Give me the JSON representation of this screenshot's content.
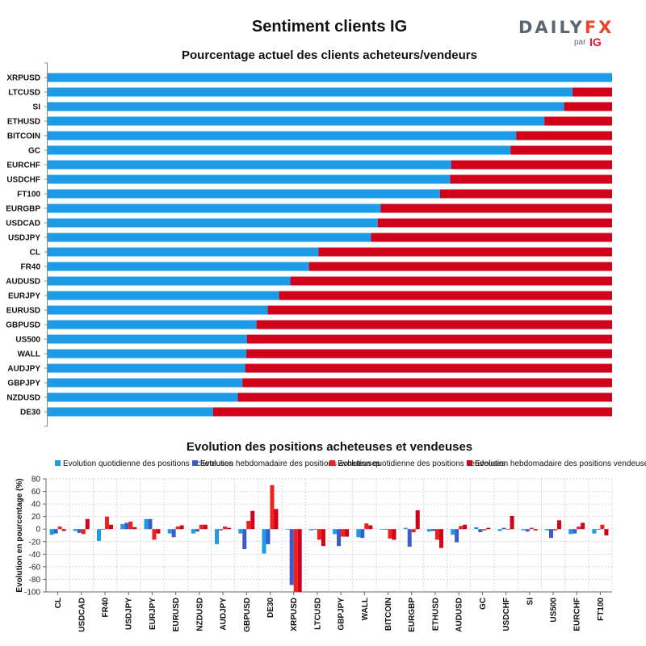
{
  "header": {
    "title": "Sentiment clients IG",
    "logo": {
      "word_main": "DAILY",
      "word_accent": "FX",
      "par": "par",
      "brand": "IG"
    }
  },
  "colors": {
    "buy": "#1e9be6",
    "sell": "#d0021b",
    "weekly_buy": "#3b5cc9",
    "weekly_sell": "#f0201d"
  },
  "chart_data": [
    {
      "type": "bar",
      "orientation": "horizontal",
      "stacked": true,
      "title": "Pourcentage actuel des clients acheteurs/vendeurs",
      "categories": [
        "XRPUSD",
        "LTCUSD",
        "SI",
        "ETHUSD",
        "BITCOIN",
        "GC",
        "EURCHF",
        "USDCHF",
        "FT100",
        "EURGBP",
        "USDCAD",
        "USDJPY",
        "CL",
        "FR40",
        "AUDUSD",
        "EURJPY",
        "EURUSD",
        "GBPUSD",
        "US500",
        "WALL",
        "AUDJPY",
        "GBPJPY",
        "NZDUSD",
        "DE30"
      ],
      "series": [
        {
          "values": [
            100,
            93,
            91.5,
            88,
            83,
            82,
            71.5,
            71.3,
            69.5,
            59,
            58.5,
            57.3,
            48,
            46.3,
            43,
            41,
            39,
            37,
            35.3,
            35.2,
            35,
            34.5,
            33.7,
            29.3
          ]
        },
        {
          "values": [
            0,
            7,
            8.5,
            12,
            17,
            18,
            28.5,
            28.7,
            30.5,
            41,
            41.5,
            42.7,
            52,
            53.7,
            57,
            59,
            61,
            63,
            64.7,
            64.8,
            65,
            65.5,
            66.3,
            70.7
          ]
        }
      ],
      "xlim": [
        0,
        100
      ]
    },
    {
      "type": "bar",
      "title": "Evolution des positions acheteuses et vendeuses",
      "ylabel": "Evolution en pourcentage (%)",
      "ylim": [
        -100,
        80
      ],
      "yticks": [
        80,
        60,
        40,
        20,
        0,
        -20,
        -40,
        -60,
        -80,
        -100
      ],
      "grid": true,
      "legend_position": "top",
      "categories": [
        "CL",
        "USDCAD",
        "FR40",
        "USDJPY",
        "EURJPY",
        "EURUSD",
        "NZDUSD",
        "AUDJPY",
        "GBPUSD",
        "DE30",
        "XRPUSD",
        "LTCUSD",
        "GBPJPY",
        "WALL",
        "BITCOIN",
        "EURGBP",
        "ETHUSD",
        "AUDUSD",
        "GC",
        "USDCHF",
        "SI",
        "US500",
        "EURCHF",
        "FT100"
      ],
      "series": [
        {
          "name": "Evolution quotidienne des positions acheteuses",
          "values": [
            -9,
            -3,
            -19,
            8,
            16,
            -7,
            -7,
            -24,
            -7,
            -39,
            0,
            -2,
            -8,
            -13,
            0,
            2,
            -4,
            -9,
            3,
            -3,
            -2,
            -2,
            -8,
            -7
          ]
        },
        {
          "name": "Evolution hebdomadaire des positions acheteuses",
          "values": [
            -7,
            -6,
            -1,
            10,
            16,
            -13,
            -4,
            -2,
            -32,
            -24,
            -89,
            -1,
            -27,
            -14,
            -1,
            -28,
            -3,
            -21,
            -5,
            2,
            -4,
            -14,
            -7,
            -1
          ]
        },
        {
          "name": "Evolution quotidienne des positions vendeuses",
          "values": [
            4,
            -8,
            20,
            12,
            -17,
            4,
            7,
            4,
            13,
            70,
            -100,
            -17,
            -12,
            9,
            -15,
            -5,
            -17,
            5,
            -2,
            -1,
            2,
            -2,
            4,
            7
          ]
        },
        {
          "name": "Evolution hebdomadaire des positions vendeuses",
          "values": [
            -3,
            16,
            7,
            3,
            -7,
            6,
            7,
            2,
            29,
            32,
            -100,
            -27,
            -12,
            6,
            -17,
            30,
            -30,
            7,
            2,
            21,
            -2,
            14,
            10,
            -10
          ]
        }
      ],
      "legend_display": [
        "Evolution quotidienne des positions acheteuses",
        "Evolution hebdomadaire des positions acheteuses",
        "Evolution quotidienne des positions vendeuses",
        "Evolution hebdomadaire des positions vendeuses"
      ]
    }
  ]
}
